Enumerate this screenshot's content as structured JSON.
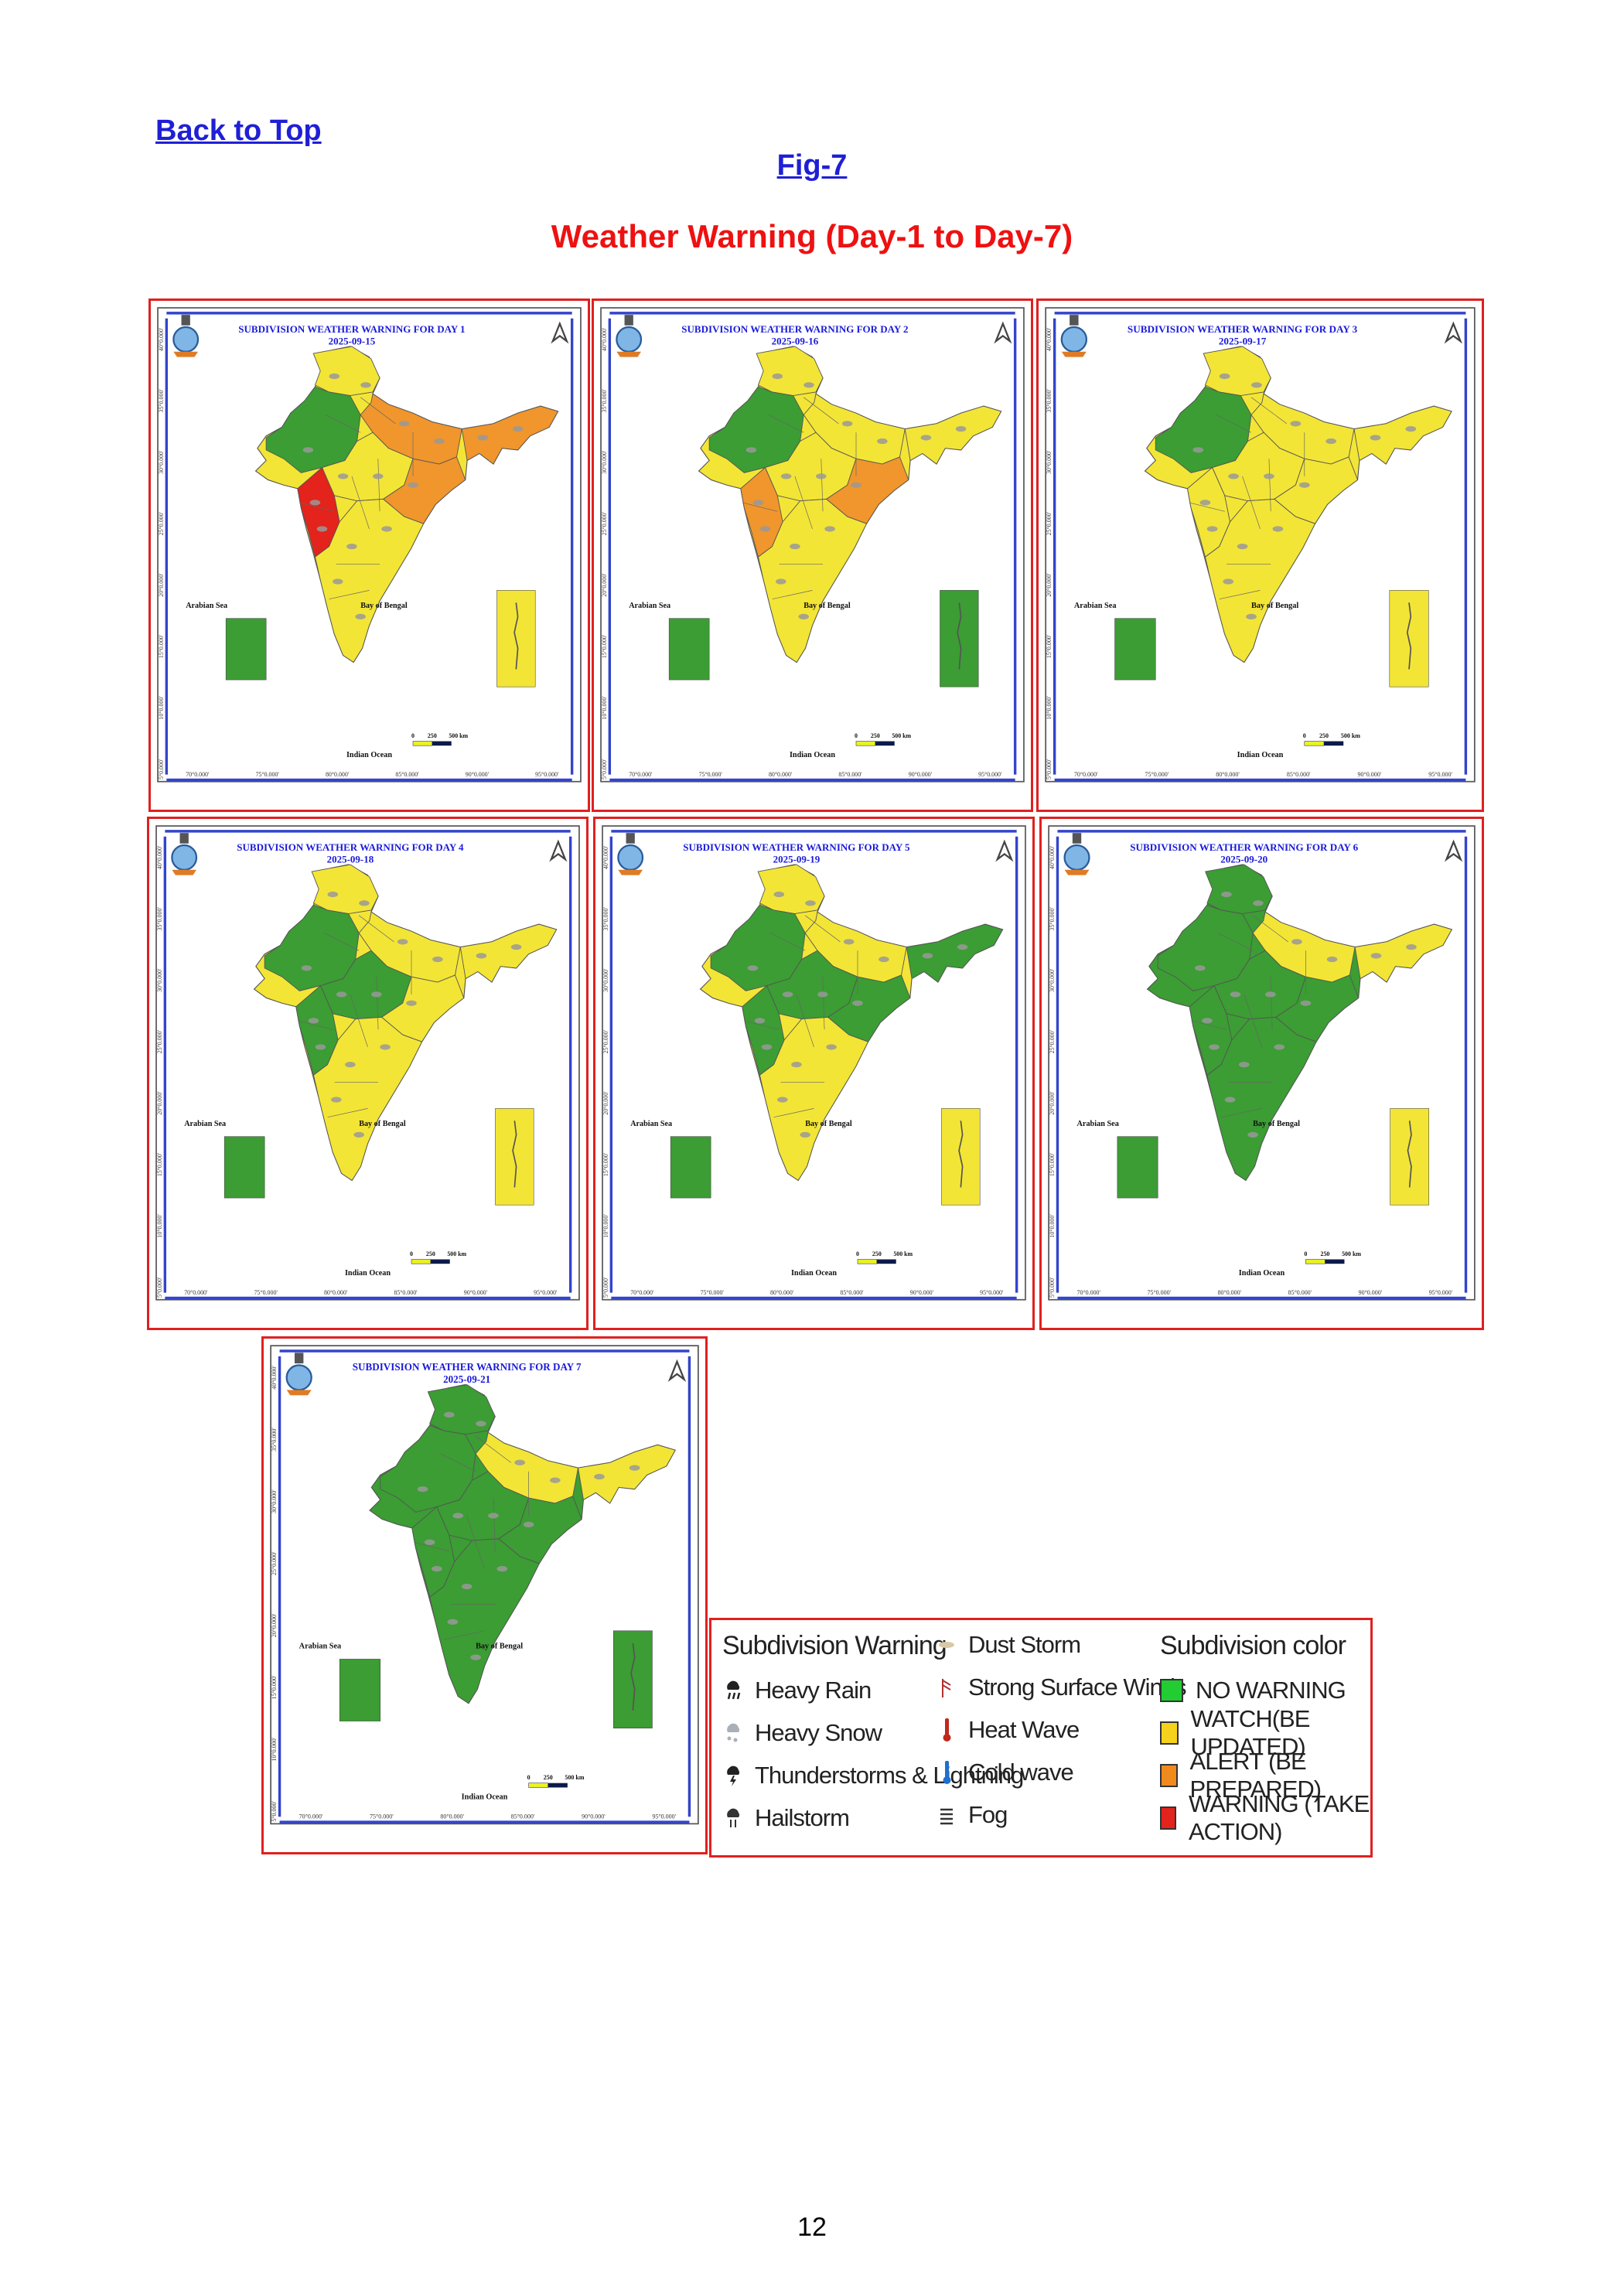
{
  "nav": {
    "back_link": "Back to Top"
  },
  "figure": {
    "label": "Fig-7",
    "title": "Weather Warning (Day-1 to Day-7)"
  },
  "map_common": {
    "arabian_sea": "Arabian Sea",
    "bay_of_bengal": "Bay of Bengal",
    "indian_ocean": "Indian Ocean",
    "scale": [
      "0",
      "250",
      "500 km"
    ],
    "lon_ticks": [
      "70°0.000'",
      "75°0.000'",
      "80°0.000'",
      "85°0.000'",
      "90°0.000'",
      "95°0.000'"
    ],
    "lat_ticks": [
      "40°0.000'",
      "35°0.000'",
      "30°0.000'",
      "25°0.000'",
      "20°0.000'",
      "15°0.000'",
      "10°0.000'",
      "5°0.000'"
    ]
  },
  "maps": [
    {
      "title": "SUBDIVISION WEATHER WARNING FOR DAY 1",
      "date": "2025-09-15",
      "base": "#f3e536",
      "north": "#f3e536",
      "nw": "#3b9d33",
      "ne": "#f0962c",
      "neast": "#f0962c",
      "central": "#f3e536",
      "west": "#e3231c",
      "south": "#f3e536",
      "east": "#f0962c",
      "islands": "#f3e536",
      "lak": "#3b9d33"
    },
    {
      "title": "SUBDIVISION WEATHER WARNING FOR DAY 2",
      "date": "2025-09-16",
      "base": "#f3e536",
      "north": "#f3e536",
      "nw": "#3b9d33",
      "ne": "#f3e536",
      "neast": "#f3e536",
      "central": "#f3e536",
      "west": "#f0962c",
      "south": "#f3e536",
      "east": "#f0962c",
      "islands": "#3b9d33",
      "lak": "#3b9d33"
    },
    {
      "title": "SUBDIVISION WEATHER WARNING FOR DAY 3",
      "date": "2025-09-17",
      "base": "#f3e536",
      "north": "#f3e536",
      "nw": "#3b9d33",
      "ne": "#f3e536",
      "neast": "#f3e536",
      "central": "#f3e536",
      "west": "#f3e536",
      "south": "#f3e536",
      "east": "#f3e536",
      "islands": "#f3e536",
      "lak": "#3b9d33"
    },
    {
      "title": "SUBDIVISION WEATHER WARNING FOR DAY 4",
      "date": "2025-09-18",
      "base": "#f3e536",
      "north": "#f3e536",
      "nw": "#3b9d33",
      "ne": "#f3e536",
      "neast": "#f3e536",
      "central": "#3b9d33",
      "west": "#3b9d33",
      "south": "#f3e536",
      "east": "#f3e536",
      "islands": "#f3e536",
      "lak": "#3b9d33"
    },
    {
      "title": "SUBDIVISION WEATHER WARNING FOR DAY 5",
      "date": "2025-09-19",
      "base": "#f3e536",
      "north": "#f3e536",
      "nw": "#3b9d33",
      "ne": "#f3e536",
      "neast": "#3b9d33",
      "central": "#3b9d33",
      "west": "#3b9d33",
      "south": "#f3e536",
      "east": "#3b9d33",
      "islands": "#f3e536",
      "lak": "#3b9d33"
    },
    {
      "title": "SUBDIVISION WEATHER WARNING FOR DAY 6",
      "date": "2025-09-20",
      "base": "#3b9d33",
      "north": "#3b9d33",
      "nw": "#3b9d33",
      "ne": "#f3e536",
      "neast": "#f3e536",
      "central": "#3b9d33",
      "west": "#3b9d33",
      "south": "#3b9d33",
      "east": "#3b9d33",
      "islands": "#f3e536",
      "lak": "#3b9d33"
    },
    {
      "title": "SUBDIVISION WEATHER WARNING FOR DAY 7",
      "date": "2025-09-21",
      "base": "#3b9d33",
      "north": "#3b9d33",
      "nw": "#3b9d33",
      "ne": "#f3e536",
      "neast": "#f3e536",
      "central": "#3b9d33",
      "west": "#3b9d33",
      "south": "#3b9d33",
      "east": "#3b9d33",
      "islands": "#3b9d33",
      "lak": "#3b9d33"
    }
  ],
  "legend": {
    "warning_title": "Subdivision Warning",
    "warning_items": [
      {
        "label": "Heavy Rain",
        "icon": "heavy-rain-icon"
      },
      {
        "label": "Heavy Snow",
        "icon": "heavy-snow-icon"
      },
      {
        "label": "Thunderstorms & Lightning",
        "icon": "thunderstorm-icon"
      },
      {
        "label": "Hailstorm",
        "icon": "hailstorm-icon"
      }
    ],
    "hazard_items": [
      {
        "label": "Dust Storm",
        "icon": "dust-storm-icon"
      },
      {
        "label": "Strong Surface Winds",
        "icon": "wind-icon"
      },
      {
        "label": "Heat Wave",
        "icon": "heat-wave-icon"
      },
      {
        "label": "Cold wave",
        "icon": "cold-wave-icon"
      },
      {
        "label": "Fog",
        "icon": "fog-icon"
      }
    ],
    "color_title": "Subdivision color",
    "color_items": [
      {
        "label": "NO WARNING",
        "color": "#22cc33"
      },
      {
        "label": "WATCH(BE UPDATED)",
        "color": "#f5d21c"
      },
      {
        "label": "ALERT (BE PREPARED)",
        "color": "#f08a1c"
      },
      {
        "label": "WARNING (TAKE ACTION)",
        "color": "#e3231c"
      }
    ]
  },
  "page_number": "12"
}
